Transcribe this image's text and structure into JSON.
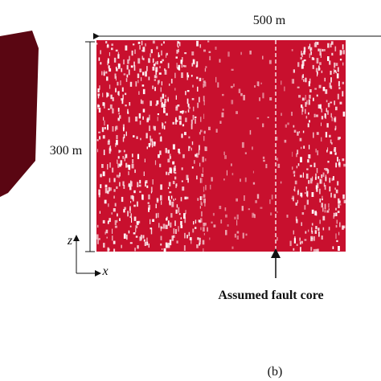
{
  "dimensions": {
    "width": "500 m",
    "height": "300 m"
  },
  "axes": {
    "vertical": "z",
    "horizontal": "x"
  },
  "annotation": "Assumed fault core",
  "panel_label": "(b)"
}
